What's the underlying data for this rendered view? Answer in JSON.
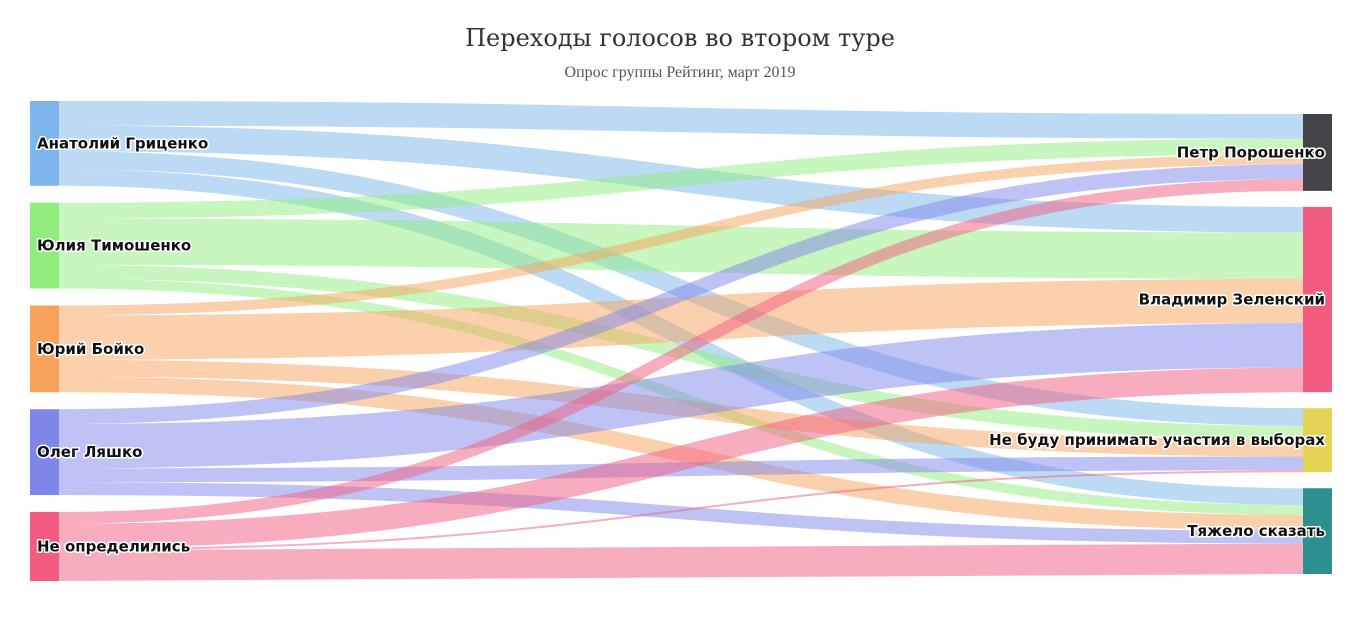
{
  "title": "Переходы голосов во втором туре",
  "subtitle": "Опрос группы Рейтинг, март 2019",
  "chart_data": {
    "type": "sankey",
    "sources": [
      {
        "id": "grytsenko",
        "label": "Анатолий Гриценко",
        "color": "#7cb5ec"
      },
      {
        "id": "tymoshenko",
        "label": "Юлия Тимошенко",
        "color": "#90ed7d"
      },
      {
        "id": "boyko",
        "label": "Юрий Бойко",
        "color": "#f7a35c"
      },
      {
        "id": "lyashko",
        "label": "Олег Ляшко",
        "color": "#8085e9"
      },
      {
        "id": "undecided",
        "label": "Не определились",
        "color": "#f15c80"
      }
    ],
    "targets": [
      {
        "id": "poroshenko",
        "label": "Петр Порошенко",
        "color": "#434348"
      },
      {
        "id": "zelensky",
        "label": "Владимир Зеленский",
        "color": "#f15c80"
      },
      {
        "id": "abstain",
        "label": "Не буду принимать участия в выборах",
        "color": "#e4d354"
      },
      {
        "id": "hard",
        "label": "Тяжело сказать",
        "color": "#2b908f"
      }
    ],
    "links": [
      {
        "from": "grytsenko",
        "to": "poroshenko",
        "value": 25
      },
      {
        "from": "grytsenko",
        "to": "zelensky",
        "value": 26
      },
      {
        "from": "grytsenko",
        "to": "abstain",
        "value": 18
      },
      {
        "from": "grytsenko",
        "to": "hard",
        "value": 17
      },
      {
        "from": "tymoshenko",
        "to": "poroshenko",
        "value": 16
      },
      {
        "from": "tymoshenko",
        "to": "zelensky",
        "value": 47
      },
      {
        "from": "tymoshenko",
        "to": "abstain",
        "value": 14
      },
      {
        "from": "tymoshenko",
        "to": "hard",
        "value": 10
      },
      {
        "from": "boyko",
        "to": "poroshenko",
        "value": 10
      },
      {
        "from": "boyko",
        "to": "zelensky",
        "value": 45
      },
      {
        "from": "boyko",
        "to": "abstain",
        "value": 17
      },
      {
        "from": "boyko",
        "to": "hard",
        "value": 16
      },
      {
        "from": "lyashko",
        "to": "poroshenko",
        "value": 15
      },
      {
        "from": "lyashko",
        "to": "zelensky",
        "value": 45
      },
      {
        "from": "lyashko",
        "to": "abstain",
        "value": 14
      },
      {
        "from": "lyashko",
        "to": "hard",
        "value": 13
      },
      {
        "from": "undecided",
        "to": "poroshenko",
        "value": 12
      },
      {
        "from": "undecided",
        "to": "zelensky",
        "value": 25
      },
      {
        "from": "undecided",
        "to": "abstain",
        "value": 2
      },
      {
        "from": "undecided",
        "to": "hard",
        "value": 31
      }
    ]
  }
}
